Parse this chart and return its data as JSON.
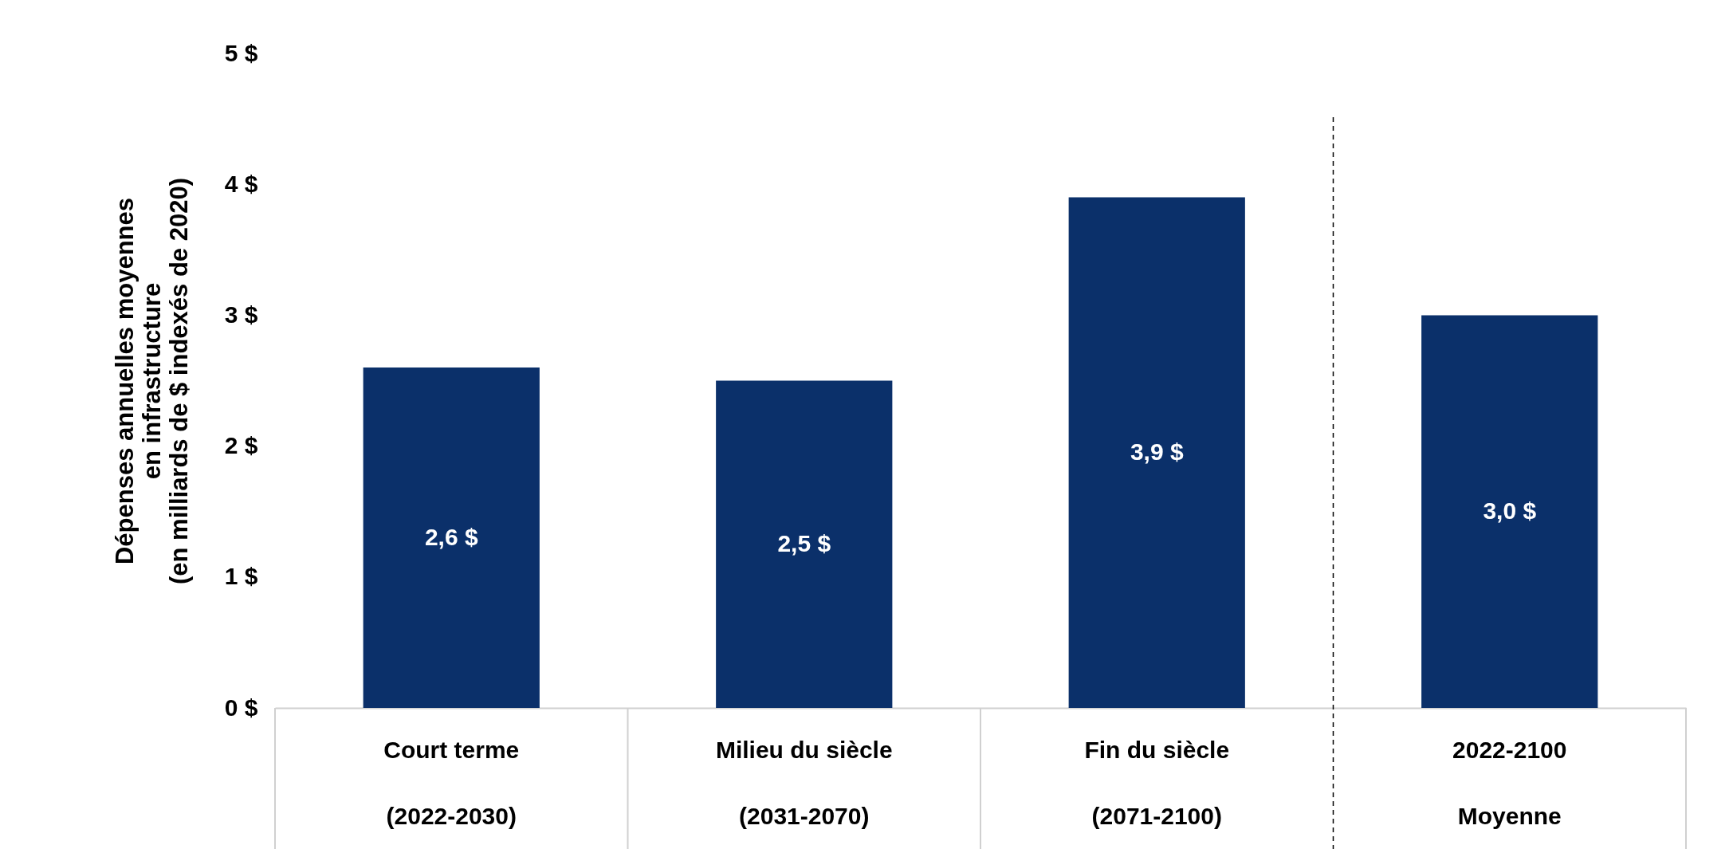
{
  "chart_data": {
    "type": "bar",
    "ylabel": "Dépenses annuelles moyennes\nen infrastructure\n(en milliards de $ indexés de 2020)",
    "categories": [
      "Court terme\n(2022-2030)",
      "Milieu du siècle\n(2031-2070)",
      "Fin du siècle\n(2071-2100)",
      "2022-2100\nMoyenne"
    ],
    "values": [
      2.6,
      2.5,
      3.9,
      3.0
    ],
    "value_labels": [
      "2,6 $",
      "2,5 $",
      "3,9 $",
      "3,0 $"
    ],
    "color": "#0b306a",
    "ylim": [
      0,
      5
    ],
    "yticks": [
      {
        "value": 0,
        "label": "0 $"
      },
      {
        "value": 1,
        "label": "1 $"
      },
      {
        "value": 2,
        "label": "2 $"
      },
      {
        "value": 3,
        "label": "3 $"
      },
      {
        "value": 4,
        "label": "4 $"
      },
      {
        "value": 5,
        "label": "5 $"
      }
    ],
    "grid": false
  }
}
